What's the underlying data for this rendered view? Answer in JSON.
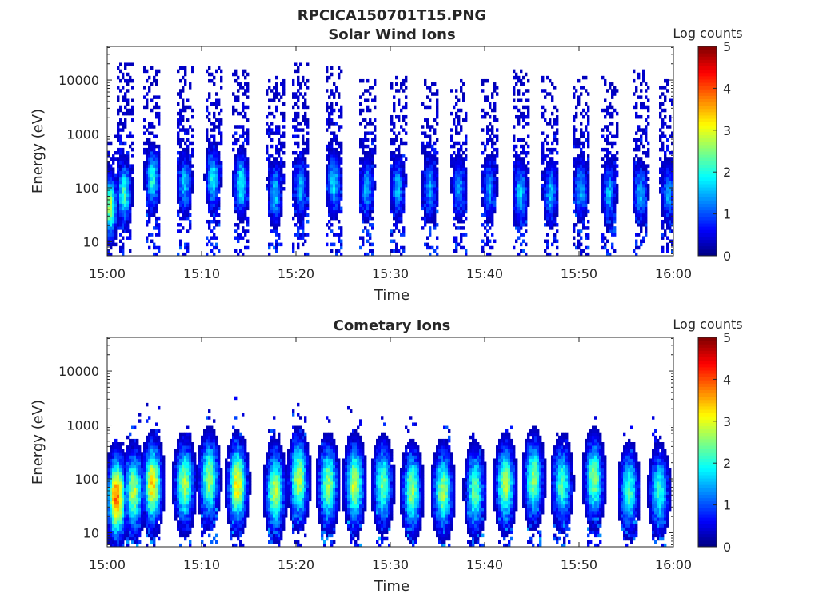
{
  "figure": {
    "title": "RPCICA150701T15.PNG"
  },
  "chart_data": [
    {
      "type": "heatmap",
      "title": "Solar Wind Ions",
      "xlabel": "Time",
      "ylabel": "Energy (eV)",
      "x_ticks": [
        "15:00",
        "15:10",
        "15:20",
        "15:30",
        "15:40",
        "15:50",
        "16:00"
      ],
      "x_range_minutes": [
        0,
        60
      ],
      "y_scale": "log",
      "y_ticks": [
        10,
        100,
        1000,
        10000
      ],
      "y_tick_labels": [
        "10",
        "100",
        "1000",
        "10000"
      ],
      "y_range": [
        5.5,
        42000
      ],
      "colorbar": {
        "label": "Log counts",
        "ticks": [
          "0",
          "1",
          "2",
          "3",
          "4",
          "5"
        ],
        "range": [
          0,
          5
        ],
        "colormap": "jet"
      },
      "bursts": [
        {
          "t": 0.3,
          "peak_energy": 45,
          "peak_log_counts": 2.8,
          "top_energy": 1000
        },
        {
          "t": 1.8,
          "peak_energy": 80,
          "peak_log_counts": 2.2,
          "top_energy": 20000
        },
        {
          "t": 4.8,
          "peak_energy": 150,
          "peak_log_counts": 2.0,
          "top_energy": 22000
        },
        {
          "t": 8.2,
          "peak_energy": 120,
          "peak_log_counts": 1.6,
          "top_energy": 18000
        },
        {
          "t": 11.2,
          "peak_energy": 150,
          "peak_log_counts": 1.9,
          "top_energy": 18000
        },
        {
          "t": 14.2,
          "peak_energy": 120,
          "peak_log_counts": 2.0,
          "top_energy": 15000
        },
        {
          "t": 17.8,
          "peak_energy": 80,
          "peak_log_counts": 1.6,
          "top_energy": 12000
        },
        {
          "t": 20.5,
          "peak_energy": 100,
          "peak_log_counts": 1.5,
          "top_energy": 20000
        },
        {
          "t": 24.0,
          "peak_energy": 120,
          "peak_log_counts": 1.7,
          "top_energy": 17000
        },
        {
          "t": 27.5,
          "peak_energy": 100,
          "peak_log_counts": 1.5,
          "top_energy": 12000
        },
        {
          "t": 30.8,
          "peak_energy": 100,
          "peak_log_counts": 1.5,
          "top_energy": 12000
        },
        {
          "t": 34.2,
          "peak_energy": 100,
          "peak_log_counts": 1.5,
          "top_energy": 10000
        },
        {
          "t": 37.3,
          "peak_energy": 100,
          "peak_log_counts": 1.4,
          "top_energy": 10000
        },
        {
          "t": 40.5,
          "peak_energy": 100,
          "peak_log_counts": 1.4,
          "top_energy": 10000
        },
        {
          "t": 43.8,
          "peak_energy": 80,
          "peak_log_counts": 1.7,
          "top_energy": 15000
        },
        {
          "t": 47.0,
          "peak_energy": 80,
          "peak_log_counts": 1.6,
          "top_energy": 12000
        },
        {
          "t": 50.2,
          "peak_energy": 100,
          "peak_log_counts": 1.5,
          "top_energy": 12000
        },
        {
          "t": 53.2,
          "peak_energy": 80,
          "peak_log_counts": 1.5,
          "top_energy": 12000
        },
        {
          "t": 56.5,
          "peak_energy": 80,
          "peak_log_counts": 1.5,
          "top_energy": 15000
        },
        {
          "t": 59.5,
          "peak_energy": 80,
          "peak_log_counts": 1.4,
          "top_energy": 10000
        }
      ]
    },
    {
      "type": "heatmap",
      "title": "Cometary Ions",
      "xlabel": "Time",
      "ylabel": "Energy (eV)",
      "x_ticks": [
        "15:00",
        "15:10",
        "15:20",
        "15:30",
        "15:40",
        "15:50",
        "16:00"
      ],
      "x_range_minutes": [
        0,
        60
      ],
      "y_scale": "log",
      "y_ticks": [
        10,
        100,
        1000,
        10000
      ],
      "y_tick_labels": [
        "10",
        "100",
        "1000",
        "10000"
      ],
      "y_range": [
        5.5,
        42000
      ],
      "colorbar": {
        "label": "Log counts",
        "ticks": [
          "0",
          "1",
          "2",
          "3",
          "4",
          "5"
        ],
        "range": [
          0,
          5
        ],
        "colormap": "jet"
      },
      "bursts": [
        {
          "t": 1.0,
          "peak_energy": 45,
          "peak_log_counts": 3.9,
          "top_energy": 700
        },
        {
          "t": 2.8,
          "peak_energy": 60,
          "peak_log_counts": 2.8,
          "top_energy": 3000
        },
        {
          "t": 4.8,
          "peak_energy": 80,
          "peak_log_counts": 3.3,
          "top_energy": 3000
        },
        {
          "t": 8.2,
          "peak_energy": 80,
          "peak_log_counts": 2.8,
          "top_energy": 1500
        },
        {
          "t": 10.8,
          "peak_energy": 100,
          "peak_log_counts": 2.7,
          "top_energy": 3000
        },
        {
          "t": 13.8,
          "peak_energy": 80,
          "peak_log_counts": 3.2,
          "top_energy": 4000
        },
        {
          "t": 17.8,
          "peak_energy": 60,
          "peak_log_counts": 2.8,
          "top_energy": 1500
        },
        {
          "t": 20.3,
          "peak_energy": 100,
          "peak_log_counts": 2.8,
          "top_energy": 3000
        },
        {
          "t": 23.4,
          "peak_energy": 80,
          "peak_log_counts": 2.7,
          "top_energy": 2000
        },
        {
          "t": 26.2,
          "peak_energy": 80,
          "peak_log_counts": 2.9,
          "top_energy": 3000
        },
        {
          "t": 29.2,
          "peak_energy": 80,
          "peak_log_counts": 2.4,
          "top_energy": 1500
        },
        {
          "t": 32.3,
          "peak_energy": 60,
          "peak_log_counts": 2.6,
          "top_energy": 1500
        },
        {
          "t": 35.6,
          "peak_energy": 60,
          "peak_log_counts": 2.7,
          "top_energy": 2000
        },
        {
          "t": 39.0,
          "peak_energy": 60,
          "peak_log_counts": 2.4,
          "top_energy": 1500
        },
        {
          "t": 42.2,
          "peak_energy": 80,
          "peak_log_counts": 2.8,
          "top_energy": 1000
        },
        {
          "t": 45.2,
          "peak_energy": 100,
          "peak_log_counts": 2.6,
          "top_energy": 1000
        },
        {
          "t": 48.2,
          "peak_energy": 80,
          "peak_log_counts": 2.3,
          "top_energy": 1000
        },
        {
          "t": 51.6,
          "peak_energy": 100,
          "peak_log_counts": 2.6,
          "top_energy": 1500
        },
        {
          "t": 55.3,
          "peak_energy": 60,
          "peak_log_counts": 2.2,
          "top_energy": 1000
        },
        {
          "t": 58.5,
          "peak_energy": 60,
          "peak_log_counts": 2.1,
          "top_energy": 1500
        }
      ]
    }
  ]
}
